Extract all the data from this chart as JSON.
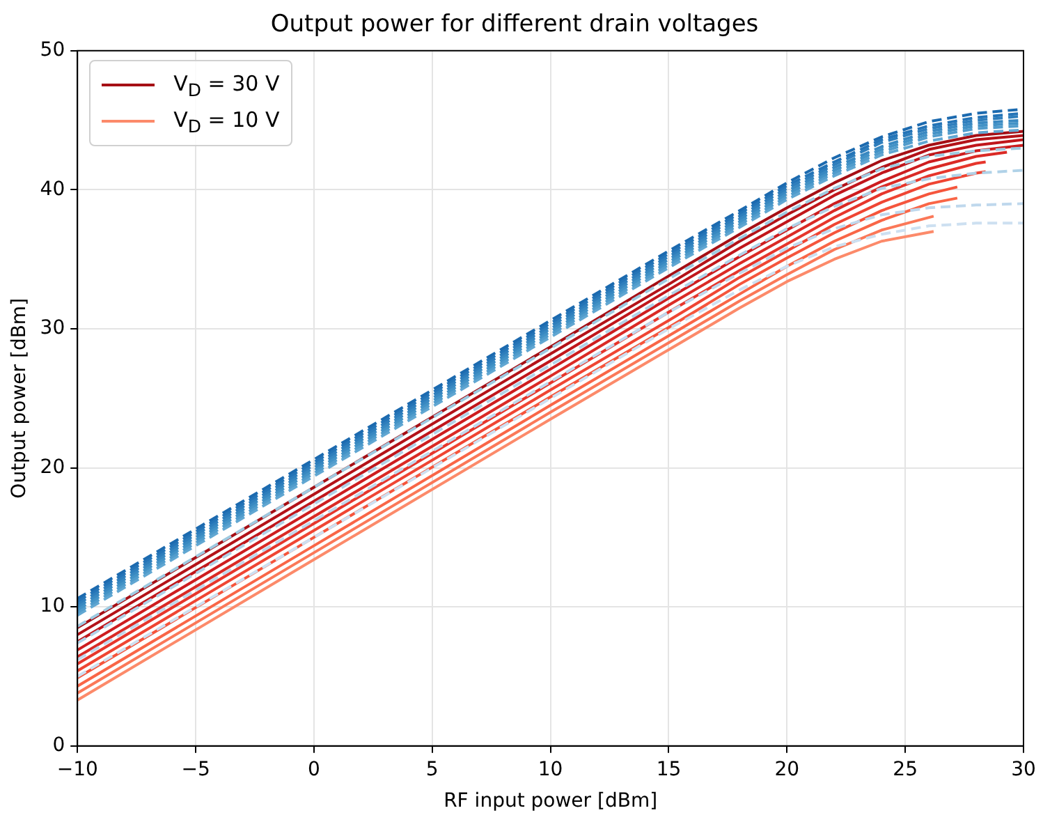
{
  "chart_data": {
    "type": "line",
    "title": "Output power for different drain voltages",
    "xlabel": "RF input power [dBm]",
    "ylabel": "Output power [dBm]",
    "xlim": [
      -10,
      30
    ],
    "xticks": [
      {
        "value": -10,
        "label": "−10"
      },
      {
        "value": -5,
        "label": "−5"
      },
      0,
      5,
      10,
      15,
      20,
      25,
      30
    ],
    "ylim": [
      0,
      50
    ],
    "yticks": [
      0,
      10,
      20,
      30,
      40,
      50
    ],
    "grid": true,
    "legend": "top left",
    "marker": "none",
    "line_style": "solid",
    "series": [
      {
        "color": "#1c6aaf",
        "line_style": "dashed",
        "x": [
          -10,
          0,
          10,
          15,
          18,
          20,
          22,
          24,
          26,
          28,
          30
        ],
        "values": [
          10.6,
          20.6,
          30.6,
          35.6,
          38.5,
          40.5,
          42.3,
          43.8,
          44.9,
          45.5,
          45.8
        ]
      },
      {
        "color": "#2474b7",
        "line_style": "dashed",
        "x": [
          -10,
          0,
          10,
          15,
          18,
          20,
          22,
          24,
          26,
          28,
          30
        ],
        "values": [
          10.4,
          20.4,
          30.4,
          35.4,
          38.3,
          40.3,
          42.0,
          43.6,
          44.6,
          45.2,
          45.5
        ]
      },
      {
        "color": "#2e7ebc",
        "line_style": "dashed",
        "x": [
          -10,
          0,
          10,
          15,
          18,
          20,
          22,
          24,
          26,
          28,
          30
        ],
        "values": [
          10.2,
          20.2,
          30.2,
          35.2,
          38.1,
          40.1,
          41.8,
          43.4,
          44.4,
          45.0,
          45.3
        ]
      },
      {
        "color": "#3888c1",
        "line_style": "dashed",
        "x": [
          -10,
          0,
          10,
          15,
          18,
          20,
          22,
          24,
          26,
          28,
          30
        ],
        "values": [
          10.0,
          20.0,
          30.0,
          35.0,
          37.9,
          39.9,
          41.6,
          43.1,
          44.2,
          44.8,
          45.0
        ]
      },
      {
        "color": "#4292c6",
        "line_style": "dashed",
        "x": [
          -10,
          0,
          10,
          15,
          18,
          20,
          22,
          24,
          26,
          28,
          30
        ],
        "values": [
          9.8,
          19.8,
          29.8,
          34.8,
          37.7,
          39.7,
          41.4,
          42.9,
          44.0,
          44.6,
          44.8
        ]
      },
      {
        "color": "#519ccc",
        "line_style": "dashed",
        "x": [
          -10,
          0,
          10,
          15,
          18,
          20,
          22,
          24,
          26,
          28,
          30
        ],
        "values": [
          9.6,
          19.6,
          29.6,
          34.6,
          37.5,
          39.5,
          41.2,
          42.7,
          43.8,
          44.4,
          44.6
        ]
      },
      {
        "color": "#61a7d2",
        "line_style": "dashed",
        "x": [
          -10,
          0,
          10,
          15,
          18,
          20,
          22,
          24,
          26,
          28,
          30
        ],
        "values": [
          9.4,
          19.4,
          29.4,
          34.4,
          37.3,
          39.3,
          41.0,
          42.5,
          43.5,
          44.1,
          44.3
        ]
      },
      {
        "color": "#9ecae1",
        "line_style": "dashed",
        "x": [
          -10,
          0,
          10,
          15,
          18,
          20,
          22,
          24,
          26,
          28,
          30
        ],
        "values": [
          8.6,
          18.6,
          28.6,
          33.6,
          36.5,
          38.4,
          40.1,
          41.5,
          42.4,
          42.8,
          43.0
        ]
      },
      {
        "color": "#b0d2e8",
        "line_style": "dashed",
        "x": [
          -10,
          0,
          10,
          15,
          18,
          20,
          22,
          24,
          26,
          28,
          30
        ],
        "values": [
          7.4,
          17.4,
          27.4,
          32.4,
          35.3,
          37.2,
          38.8,
          40.1,
          40.8,
          41.2,
          41.4
        ]
      },
      {
        "color": "#bfd8ed",
        "line_style": "dashed",
        "x": [
          -10,
          0,
          10,
          15,
          18,
          20,
          22,
          24,
          26,
          28,
          30
        ],
        "values": [
          6.2,
          16.2,
          26.2,
          31.2,
          34.0,
          35.8,
          37.2,
          38.2,
          38.7,
          38.9,
          39.0
        ]
      },
      {
        "color": "#cde0f1",
        "line_style": "dashed",
        "x": [
          -10,
          0,
          10,
          15,
          18,
          20,
          22,
          24,
          26,
          28,
          30
        ],
        "values": [
          5.0,
          15.0,
          25.0,
          30.0,
          32.8,
          34.5,
          35.9,
          36.8,
          37.4,
          37.6,
          37.6
        ]
      },
      {
        "name": "V$_{D}$ = 30 V",
        "color": "#a50f15",
        "x": [
          -10,
          0,
          10,
          15,
          18,
          20,
          22,
          24,
          26,
          28,
          30
        ],
        "values": [
          8.5,
          18.6,
          28.7,
          33.8,
          36.8,
          38.7,
          40.5,
          42.1,
          43.2,
          43.9,
          44.2
        ]
      },
      {
        "color": "#b31218",
        "x": [
          -10,
          0,
          10,
          15,
          18,
          20,
          22,
          24,
          26,
          28,
          30
        ],
        "values": [
          8.0,
          18.1,
          28.2,
          33.2,
          36.3,
          38.2,
          40.0,
          41.6,
          42.9,
          43.6,
          43.9
        ]
      },
      {
        "color": "#c0161b",
        "x": [
          -10,
          0,
          10,
          15,
          18,
          20,
          22,
          24,
          26,
          28,
          30
        ],
        "values": [
          7.5,
          17.6,
          27.7,
          32.8,
          35.8,
          37.7,
          39.6,
          41.2,
          42.5,
          43.2,
          43.6
        ]
      },
      {
        "color": "#cd1d1f",
        "x": [
          -10,
          0,
          10,
          15,
          18,
          20,
          22,
          24,
          26,
          28,
          30
        ],
        "values": [
          6.9,
          17.0,
          27.1,
          32.2,
          35.2,
          37.1,
          39.0,
          40.6,
          42.0,
          42.8,
          43.2
        ]
      },
      {
        "color": "#da2a25",
        "x": [
          -10,
          0,
          10,
          15,
          18,
          20,
          22,
          24,
          26,
          28,
          29.3
        ],
        "values": [
          6.4,
          16.5,
          26.6,
          31.7,
          34.7,
          36.6,
          38.5,
          40.2,
          41.5,
          42.4,
          42.7
        ]
      },
      {
        "color": "#e6362c",
        "x": [
          -10,
          0,
          10,
          15,
          18,
          20,
          22,
          24,
          26,
          28,
          28.4
        ],
        "values": [
          5.9,
          16.0,
          26.1,
          31.2,
          34.2,
          36.1,
          38.0,
          39.7,
          41.0,
          41.9,
          42.0
        ]
      },
      {
        "color": "#ef4533",
        "x": [
          -10,
          0,
          10,
          15,
          18,
          20,
          22,
          24,
          26,
          28,
          28.4
        ],
        "values": [
          5.4,
          15.5,
          25.6,
          30.6,
          33.7,
          35.6,
          37.5,
          39.1,
          40.4,
          41.2,
          41.3
        ]
      },
      {
        "color": "#f5553c",
        "x": [
          -10,
          0,
          10,
          15,
          18,
          20,
          22,
          24,
          26,
          27.2
        ],
        "values": [
          4.9,
          15.0,
          25.1,
          30.1,
          33.2,
          35.1,
          36.9,
          38.5,
          39.7,
          40.2
        ]
      },
      {
        "color": "#f96647",
        "x": [
          -10,
          0,
          10,
          15,
          18,
          20,
          22,
          24,
          26,
          27.2
        ],
        "values": [
          4.3,
          14.4,
          24.5,
          29.5,
          32.5,
          34.5,
          36.3,
          37.8,
          39.0,
          39.4
        ]
      },
      {
        "color": "#fb7858",
        "x": [
          -10,
          0,
          10,
          15,
          18,
          20,
          22,
          24,
          26.2
        ],
        "values": [
          3.8,
          13.9,
          24.0,
          29.0,
          32.0,
          33.9,
          35.7,
          37.1,
          38.1
        ]
      },
      {
        "name": "V$_{D}$ = 10 V",
        "color": "#fc8a6a",
        "x": [
          -10,
          0,
          10,
          15,
          18,
          20,
          22,
          24,
          26.2
        ],
        "values": [
          3.3,
          13.4,
          23.5,
          28.5,
          31.5,
          33.4,
          35.0,
          36.3,
          37.0
        ]
      }
    ]
  }
}
